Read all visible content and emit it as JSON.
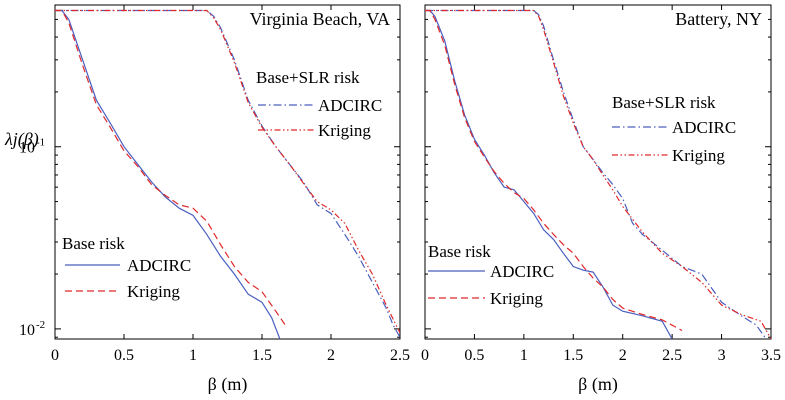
{
  "chart_data": [
    {
      "type": "line",
      "title": "Virginia Beach, VA",
      "xlabel": "β (m)",
      "ylabel": "λj(β)",
      "yscale": "log",
      "xlim": [
        0,
        2.5
      ],
      "ylim": [
        0.0088,
        0.6
      ],
      "x_ticks": [
        "0",
        "0.5",
        "1",
        "1.5",
        "2",
        "2.5"
      ],
      "y_ticks": [
        {
          "value": 0.1,
          "label": "10",
          "exp": "-1"
        },
        {
          "value": 0.01,
          "label": "10",
          "exp": "-2"
        }
      ],
      "grid": false,
      "legend_groups": [
        {
          "title": "Base risk",
          "position": "lower-left",
          "entries": [
            {
              "name": "ADCIRC",
              "series": 0
            },
            {
              "name": "Kriging",
              "series": 1
            }
          ]
        },
        {
          "title": "Base+SLR risk",
          "position": "upper-right",
          "entries": [
            {
              "name": "ADCIRC",
              "series": 2
            },
            {
              "name": "Kriging",
              "series": 3
            }
          ]
        }
      ],
      "series": [
        {
          "name": "ADCIRC",
          "style": "solid",
          "color": "#4a5fbf",
          "points": [
            [
              0,
              0.56
            ],
            [
              0.05,
              0.56
            ],
            [
              0.1,
              0.5
            ],
            [
              0.2,
              0.3
            ],
            [
              0.3,
              0.18
            ],
            [
              0.4,
              0.135
            ],
            [
              0.5,
              0.1
            ],
            [
              0.6,
              0.08
            ],
            [
              0.7,
              0.064
            ],
            [
              0.8,
              0.053
            ],
            [
              0.9,
              0.046
            ],
            [
              1.0,
              0.042
            ],
            [
              1.1,
              0.033
            ],
            [
              1.2,
              0.025
            ],
            [
              1.3,
              0.02
            ],
            [
              1.4,
              0.0155
            ],
            [
              1.5,
              0.014
            ],
            [
              1.57,
              0.0115
            ],
            [
              1.63,
              0.0088
            ]
          ]
        },
        {
          "name": "Kriging",
          "style": "dashed",
          "color": "#e0282a",
          "points": [
            [
              0,
              0.56
            ],
            [
              0.05,
              0.56
            ],
            [
              0.1,
              0.48
            ],
            [
              0.2,
              0.28
            ],
            [
              0.3,
              0.17
            ],
            [
              0.4,
              0.128
            ],
            [
              0.5,
              0.095
            ],
            [
              0.6,
              0.078
            ],
            [
              0.7,
              0.062
            ],
            [
              0.8,
              0.054
            ],
            [
              0.9,
              0.048
            ],
            [
              1.0,
              0.046
            ],
            [
              1.1,
              0.039
            ],
            [
              1.2,
              0.029
            ],
            [
              1.3,
              0.022
            ],
            [
              1.4,
              0.018
            ],
            [
              1.5,
              0.016
            ],
            [
              1.6,
              0.0125
            ],
            [
              1.68,
              0.0102
            ]
          ]
        },
        {
          "name": "ADCIRC",
          "style": "dashdot",
          "color": "#4a5fbf",
          "points": [
            [
              0,
              0.56
            ],
            [
              1.1,
              0.56
            ],
            [
              1.15,
              0.52
            ],
            [
              1.2,
              0.45
            ],
            [
              1.3,
              0.3
            ],
            [
              1.4,
              0.18
            ],
            [
              1.5,
              0.13
            ],
            [
              1.6,
              0.1
            ],
            [
              1.7,
              0.08
            ],
            [
              1.8,
              0.064
            ],
            [
              1.9,
              0.048
            ],
            [
              2.0,
              0.043
            ],
            [
              2.1,
              0.033
            ],
            [
              2.2,
              0.025
            ],
            [
              2.3,
              0.018
            ],
            [
              2.4,
              0.013
            ],
            [
              2.45,
              0.0105
            ],
            [
              2.5,
              0.009
            ]
          ]
        },
        {
          "name": "Kriging",
          "style": "dashdotdot",
          "color": "#e0282a",
          "points": [
            [
              0,
              0.56
            ],
            [
              1.1,
              0.56
            ],
            [
              1.15,
              0.51
            ],
            [
              1.2,
              0.44
            ],
            [
              1.3,
              0.29
            ],
            [
              1.4,
              0.175
            ],
            [
              1.5,
              0.128
            ],
            [
              1.6,
              0.1
            ],
            [
              1.7,
              0.08
            ],
            [
              1.8,
              0.063
            ],
            [
              1.9,
              0.05
            ],
            [
              2.0,
              0.045
            ],
            [
              2.1,
              0.038
            ],
            [
              2.2,
              0.027
            ],
            [
              2.3,
              0.02
            ],
            [
              2.4,
              0.0135
            ],
            [
              2.5,
              0.0095
            ]
          ]
        }
      ]
    },
    {
      "type": "line",
      "title": "Battery, NY",
      "xlabel": "β (m)",
      "ylabel": "",
      "yscale": "log",
      "xlim": [
        0,
        3.5
      ],
      "ylim": [
        0.0088,
        0.6
      ],
      "x_ticks": [
        "0",
        "0.5",
        "1",
        "1.5",
        "2",
        "2.5",
        "3",
        "3.5"
      ],
      "y_ticks": [],
      "grid": false,
      "legend_groups": [
        {
          "title": "Base risk",
          "position": "lower-left",
          "entries": [
            {
              "name": "ADCIRC",
              "series": 0
            },
            {
              "name": "Kriging",
              "series": 1
            }
          ]
        },
        {
          "title": "Base+SLR risk",
          "position": "upper-right",
          "entries": [
            {
              "name": "ADCIRC",
              "series": 2
            },
            {
              "name": "Kriging",
              "series": 3
            }
          ]
        }
      ],
      "series": [
        {
          "name": "ADCIRC",
          "style": "solid",
          "color": "#4a5fbf",
          "points": [
            [
              0,
              0.56
            ],
            [
              0.05,
              0.56
            ],
            [
              0.1,
              0.52
            ],
            [
              0.2,
              0.38
            ],
            [
              0.3,
              0.23
            ],
            [
              0.4,
              0.15
            ],
            [
              0.5,
              0.11
            ],
            [
              0.6,
              0.09
            ],
            [
              0.7,
              0.072
            ],
            [
              0.8,
              0.06
            ],
            [
              0.9,
              0.058
            ],
            [
              1.0,
              0.05
            ],
            [
              1.1,
              0.043
            ],
            [
              1.2,
              0.035
            ],
            [
              1.3,
              0.031
            ],
            [
              1.4,
              0.026
            ],
            [
              1.5,
              0.022
            ],
            [
              1.6,
              0.021
            ],
            [
              1.7,
              0.0205
            ],
            [
              1.8,
              0.017
            ],
            [
              1.9,
              0.0135
            ],
            [
              2.0,
              0.0125
            ],
            [
              2.2,
              0.0118
            ],
            [
              2.4,
              0.011
            ],
            [
              2.5,
              0.0088
            ]
          ]
        },
        {
          "name": "Kriging",
          "style": "dashed",
          "color": "#e0282a",
          "points": [
            [
              0,
              0.56
            ],
            [
              0.05,
              0.56
            ],
            [
              0.1,
              0.5
            ],
            [
              0.2,
              0.36
            ],
            [
              0.3,
              0.22
            ],
            [
              0.4,
              0.145
            ],
            [
              0.5,
              0.107
            ],
            [
              0.6,
              0.088
            ],
            [
              0.7,
              0.073
            ],
            [
              0.8,
              0.063
            ],
            [
              0.9,
              0.056
            ],
            [
              1.0,
              0.052
            ],
            [
              1.1,
              0.045
            ],
            [
              1.2,
              0.038
            ],
            [
              1.3,
              0.033
            ],
            [
              1.4,
              0.029
            ],
            [
              1.5,
              0.026
            ],
            [
              1.6,
              0.022
            ],
            [
              1.7,
              0.019
            ],
            [
              1.8,
              0.017
            ],
            [
              1.9,
              0.0145
            ],
            [
              2.0,
              0.013
            ],
            [
              2.2,
              0.012
            ],
            [
              2.4,
              0.0112
            ],
            [
              2.6,
              0.0098
            ]
          ]
        },
        {
          "name": "ADCIRC",
          "style": "dashdot",
          "color": "#4a5fbf",
          "points": [
            [
              0,
              0.56
            ],
            [
              1.1,
              0.56
            ],
            [
              1.15,
              0.53
            ],
            [
              1.2,
              0.46
            ],
            [
              1.3,
              0.3
            ],
            [
              1.4,
              0.2
            ],
            [
              1.5,
              0.14
            ],
            [
              1.6,
              0.1
            ],
            [
              1.7,
              0.085
            ],
            [
              1.8,
              0.072
            ],
            [
              1.9,
              0.062
            ],
            [
              2.0,
              0.052
            ],
            [
              2.1,
              0.038
            ],
            [
              2.2,
              0.033
            ],
            [
              2.4,
              0.027
            ],
            [
              2.6,
              0.022
            ],
            [
              2.8,
              0.02
            ],
            [
              3.0,
              0.014
            ],
            [
              3.2,
              0.0118
            ],
            [
              3.35,
              0.0105
            ],
            [
              3.45,
              0.0088
            ]
          ]
        },
        {
          "name": "Kriging",
          "style": "dashdotdot",
          "color": "#e0282a",
          "points": [
            [
              0,
              0.56
            ],
            [
              1.1,
              0.56
            ],
            [
              1.15,
              0.52
            ],
            [
              1.2,
              0.44
            ],
            [
              1.3,
              0.29
            ],
            [
              1.4,
              0.19
            ],
            [
              1.5,
              0.135
            ],
            [
              1.6,
              0.1
            ],
            [
              1.7,
              0.085
            ],
            [
              1.8,
              0.07
            ],
            [
              1.9,
              0.058
            ],
            [
              2.0,
              0.047
            ],
            [
              2.1,
              0.04
            ],
            [
              2.2,
              0.034
            ],
            [
              2.4,
              0.026
            ],
            [
              2.6,
              0.022
            ],
            [
              2.8,
              0.018
            ],
            [
              3.0,
              0.0135
            ],
            [
              3.2,
              0.012
            ],
            [
              3.4,
              0.011
            ],
            [
              3.5,
              0.0088
            ]
          ]
        }
      ]
    }
  ]
}
